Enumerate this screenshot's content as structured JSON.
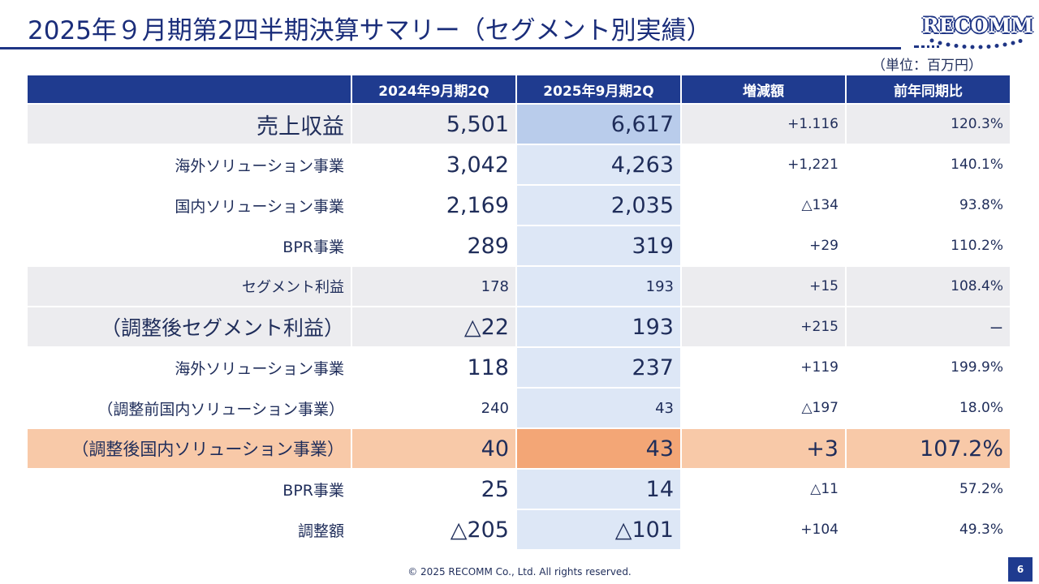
{
  "title": "2025年９月期第2四半期決算サマリー（セグメント別実績）",
  "logo_text": "RECOMM",
  "unit": "（単位：百万円）",
  "colors": {
    "header_bg": "#1f3b8f",
    "current_col": "#dde7f6",
    "highlight": "#f8c9a8",
    "highlight_current": "#f3a676",
    "brand": "#1f3585"
  },
  "table": {
    "headers": [
      "",
      "2024年9月期2Q",
      "2025年9月期2Q",
      "増減額",
      "前年同期比"
    ],
    "rows": [
      {
        "label": "売上収益",
        "prev": "5,501",
        "cur": "6,617",
        "diff": "+1.116",
        "ratio": "120.3%"
      },
      {
        "label": "海外ソリューション事業",
        "prev": "3,042",
        "cur": "4,263",
        "diff": "+1,221",
        "ratio": "140.1%"
      },
      {
        "label": "国内ソリューション事業",
        "prev": "2,169",
        "cur": "2,035",
        "diff": "△134",
        "ratio": "93.8%"
      },
      {
        "label": "BPR事業",
        "prev": "289",
        "cur": "319",
        "diff": "+29",
        "ratio": "110.2%"
      },
      {
        "label": "セグメント利益",
        "prev": "178",
        "cur": "193",
        "diff": "+15",
        "ratio": "108.4%"
      },
      {
        "label": "（調整後セグメント利益）",
        "prev": "△22",
        "cur": "193",
        "diff": "+215",
        "ratio": "ー"
      },
      {
        "label": "海外ソリューション事業",
        "prev": "118",
        "cur": "237",
        "diff": "+119",
        "ratio": "199.9%"
      },
      {
        "label": "（調整前国内ソリューション事業）",
        "prev": "240",
        "cur": "43",
        "diff": "△197",
        "ratio": "18.0%"
      },
      {
        "label": "（調整後国内ソリューション事業）",
        "prev": "40",
        "cur": "43",
        "diff": "+3",
        "ratio": "107.2%"
      },
      {
        "label": "BPR事業",
        "prev": "25",
        "cur": "14",
        "diff": "△11",
        "ratio": "57.2%"
      },
      {
        "label": "調整額",
        "prev": "△205",
        "cur": "△101",
        "diff": "+104",
        "ratio": "49.3%"
      }
    ]
  },
  "footer": "© 2025 RECOMM Co., Ltd. All rights reserved.",
  "page_number": "6"
}
